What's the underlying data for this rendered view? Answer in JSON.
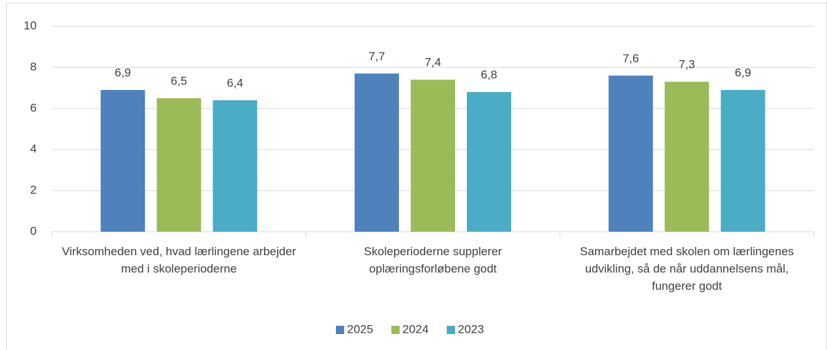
{
  "chart_data": {
    "type": "bar",
    "categories": [
      "Virksomheden ved, hvad lærlingene arbejder med i skoleperioderne",
      "Skoleperioderne supplerer oplæringsforløbene godt",
      "Samarbejdet med skolen om lærlingenes udvikling, så de når uddannelsens mål, fungerer godt"
    ],
    "series": [
      {
        "name": "2025",
        "color": "#4f81bd",
        "values": [
          6.9,
          7.7,
          7.6
        ],
        "value_labels": [
          "6,9",
          "7,7",
          "7,6"
        ]
      },
      {
        "name": "2024",
        "color": "#9bbb59",
        "values": [
          6.5,
          7.4,
          7.3
        ],
        "value_labels": [
          "6,5",
          "7,4",
          "7,3"
        ]
      },
      {
        "name": "2023",
        "color": "#4bacc6",
        "values": [
          6.4,
          6.8,
          6.9
        ],
        "value_labels": [
          "6,4",
          "6,8",
          "6,9"
        ]
      }
    ],
    "ylim": [
      0,
      10
    ],
    "yticks": [
      0,
      2,
      4,
      6,
      8,
      10
    ],
    "grid": true,
    "legend": "bottom"
  }
}
